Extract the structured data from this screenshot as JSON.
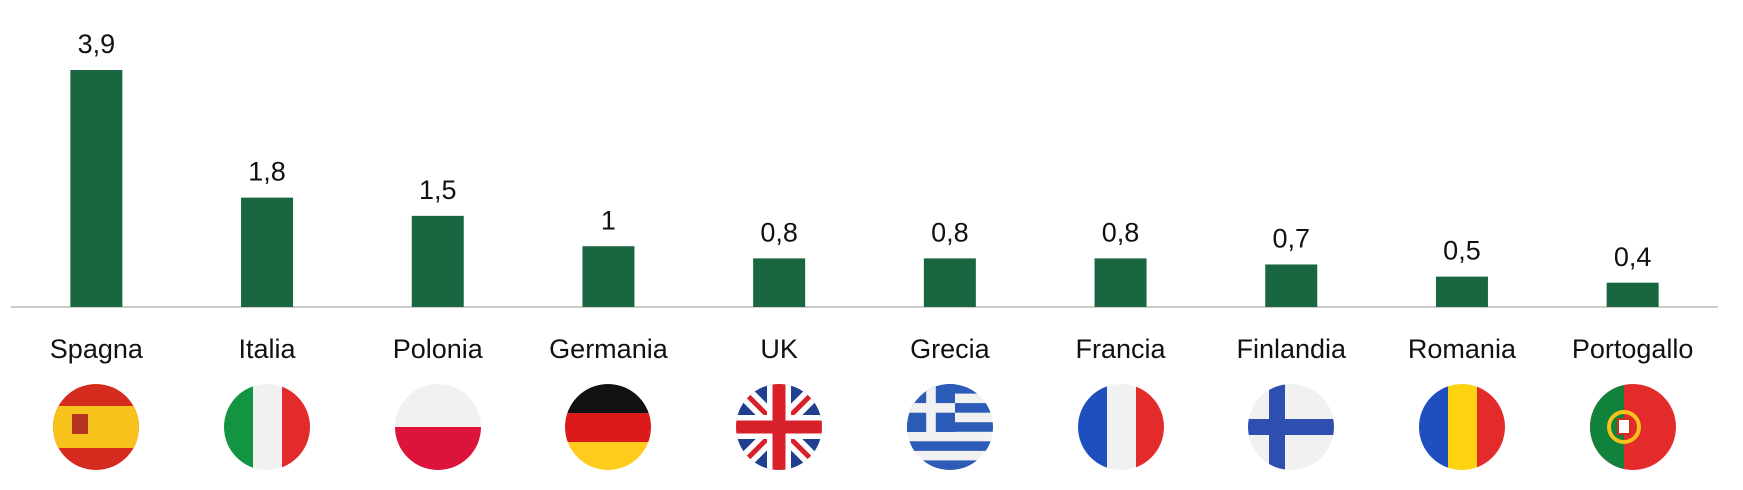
{
  "chart_data": {
    "type": "bar",
    "categories": [
      "Spagna",
      "Italia",
      "Polonia",
      "Germania",
      "UK",
      "Grecia",
      "Francia",
      "Finlandia",
      "Romania",
      "Portogallo"
    ],
    "values": [
      3.9,
      1.8,
      1.5,
      1,
      0.8,
      0.8,
      0.8,
      0.7,
      0.5,
      0.4
    ],
    "value_labels": [
      "3,9",
      "1,8",
      "1,5",
      "1",
      "0,8",
      "0,8",
      "0,8",
      "0,7",
      "0,5",
      "0,4"
    ],
    "color": "#1a6640"
  }
}
